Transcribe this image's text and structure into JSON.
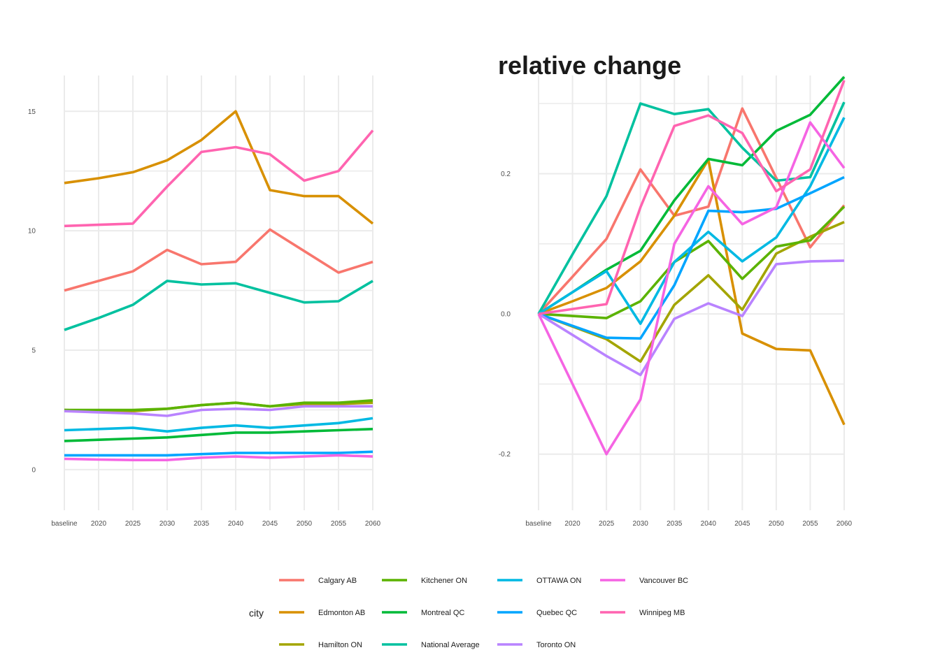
{
  "chart_data": [
    {
      "type": "line",
      "title": "",
      "xlabel": "",
      "ylabel": "",
      "categories": [
        "baseline",
        "2020",
        "2025",
        "2030",
        "2035",
        "2040",
        "2045",
        "2050",
        "2055",
        "2060"
      ],
      "ylim": [
        -1.7,
        16.5
      ],
      "yticks": [
        0,
        5,
        10,
        15
      ],
      "grid": true,
      "series": [
        {
          "name": "Calgary AB",
          "color": "#F8766D",
          "values": [
            7.5,
            7.9,
            8.3,
            9.2,
            8.6,
            8.7,
            10.05,
            9.15,
            8.25,
            8.7
          ]
        },
        {
          "name": "Edmonton AB",
          "color": "#D89000",
          "values": [
            12.0,
            12.2,
            12.45,
            12.95,
            13.8,
            15.0,
            11.7,
            11.45,
            11.45,
            10.3
          ]
        },
        {
          "name": "Hamilton ON",
          "color": "#A3A500",
          "values": [
            2.5,
            2.45,
            2.45,
            2.55,
            2.7,
            2.8,
            2.65,
            2.75,
            2.75,
            2.8
          ]
        },
        {
          "name": "Kitchener ON",
          "color": "#5BB300",
          "values": [
            2.5,
            2.5,
            2.5,
            2.55,
            2.7,
            2.8,
            2.65,
            2.8,
            2.8,
            2.9
          ]
        },
        {
          "name": "Montreal QC",
          "color": "#00BA38",
          "values": [
            1.2,
            1.25,
            1.3,
            1.35,
            1.45,
            1.55,
            1.55,
            1.6,
            1.65,
            1.7
          ]
        },
        {
          "name": "National Average",
          "color": "#00C19F",
          "values": [
            5.85,
            6.35,
            6.9,
            7.9,
            7.75,
            7.8,
            7.4,
            7.0,
            7.05,
            7.9
          ]
        },
        {
          "name": "OTTAWA ON",
          "color": "#00B9E3",
          "values": [
            1.65,
            1.7,
            1.75,
            1.6,
            1.75,
            1.85,
            1.75,
            1.85,
            1.95,
            2.15
          ]
        },
        {
          "name": "Quebec QC",
          "color": "#00A5FF",
          "values": [
            0.6,
            0.6,
            0.6,
            0.6,
            0.65,
            0.7,
            0.7,
            0.7,
            0.7,
            0.75
          ]
        },
        {
          "name": "Toronto ON",
          "color": "#B983FF",
          "values": [
            2.45,
            2.4,
            2.35,
            2.25,
            2.5,
            2.55,
            2.5,
            2.65,
            2.65,
            2.65
          ]
        },
        {
          "name": "Vancouver BC",
          "color": "#F564E3",
          "values": [
            0.45,
            0.42,
            0.4,
            0.4,
            0.5,
            0.55,
            0.5,
            0.55,
            0.6,
            0.55
          ]
        },
        {
          "name": "Winnipeg MB",
          "color": "#FF64B0",
          "values": [
            10.2,
            10.25,
            10.3,
            11.85,
            13.3,
            13.5,
            13.2,
            12.1,
            12.5,
            14.2
          ]
        }
      ]
    },
    {
      "type": "line",
      "title": "relative change",
      "xlabel": "",
      "ylabel": "",
      "categories": [
        "baseline",
        "2020",
        "2025",
        "2030",
        "2035",
        "2040",
        "2045",
        "2050",
        "2055",
        "2060"
      ],
      "ylim": [
        -0.28,
        0.34
      ],
      "yticks": [
        -0.2,
        0.0,
        0.2
      ],
      "grid": true,
      "series": [
        {
          "name": "Calgary AB",
          "color": "#F8766D",
          "values": [
            0.0,
            0.053,
            0.107,
            0.206,
            0.14,
            0.153,
            0.293,
            0.194,
            0.095,
            0.155
          ]
        },
        {
          "name": "Edmonton AB",
          "color": "#D89000",
          "values": [
            0.0,
            0.018,
            0.037,
            0.075,
            0.14,
            0.22,
            -0.028,
            -0.05,
            -0.052,
            -0.158
          ]
        },
        {
          "name": "Hamilton ON",
          "color": "#A3A500",
          "values": [
            0.0,
            -0.018,
            -0.036,
            -0.068,
            0.013,
            0.055,
            0.006,
            0.086,
            0.11,
            0.131
          ]
        },
        {
          "name": "Kitchener ON",
          "color": "#5BB300",
          "values": [
            0.0,
            -0.003,
            -0.006,
            0.018,
            0.074,
            0.104,
            0.05,
            0.096,
            0.105,
            0.153
          ]
        },
        {
          "name": "Montreal QC",
          "color": "#00BA38",
          "values": [
            0.0,
            0.031,
            0.063,
            0.09,
            0.162,
            0.221,
            0.212,
            0.261,
            0.284,
            0.338
          ]
        },
        {
          "name": "National Average",
          "color": "#00C19F",
          "values": [
            0.0,
            0.085,
            0.168,
            0.3,
            0.285,
            0.292,
            0.237,
            0.19,
            0.195,
            0.302
          ]
        },
        {
          "name": "OTTAWA ON",
          "color": "#00B9E3",
          "values": [
            0.0,
            0.031,
            0.061,
            -0.014,
            0.074,
            0.117,
            0.075,
            0.109,
            0.182,
            0.28
          ]
        },
        {
          "name": "Quebec QC",
          "color": "#00A5FF",
          "values": [
            0.0,
            -0.017,
            -0.034,
            -0.035,
            0.041,
            0.147,
            0.145,
            0.15,
            0.172,
            0.195
          ]
        },
        {
          "name": "Toronto ON",
          "color": "#B983FF",
          "values": [
            0.0,
            -0.03,
            -0.06,
            -0.087,
            -0.007,
            0.015,
            -0.003,
            0.071,
            0.075,
            0.076
          ]
        },
        {
          "name": "Vancouver BC",
          "color": "#F564E3",
          "values": [
            0.0,
            -0.1,
            -0.2,
            -0.122,
            0.1,
            0.182,
            0.128,
            0.152,
            0.273,
            0.208
          ]
        },
        {
          "name": "Winnipeg MB",
          "color": "#FF64B0",
          "values": [
            0.0,
            0.007,
            0.014,
            0.152,
            0.268,
            0.283,
            0.258,
            0.175,
            0.206,
            0.333
          ]
        }
      ]
    }
  ],
  "legend": {
    "title": "city",
    "position": "bottom"
  }
}
